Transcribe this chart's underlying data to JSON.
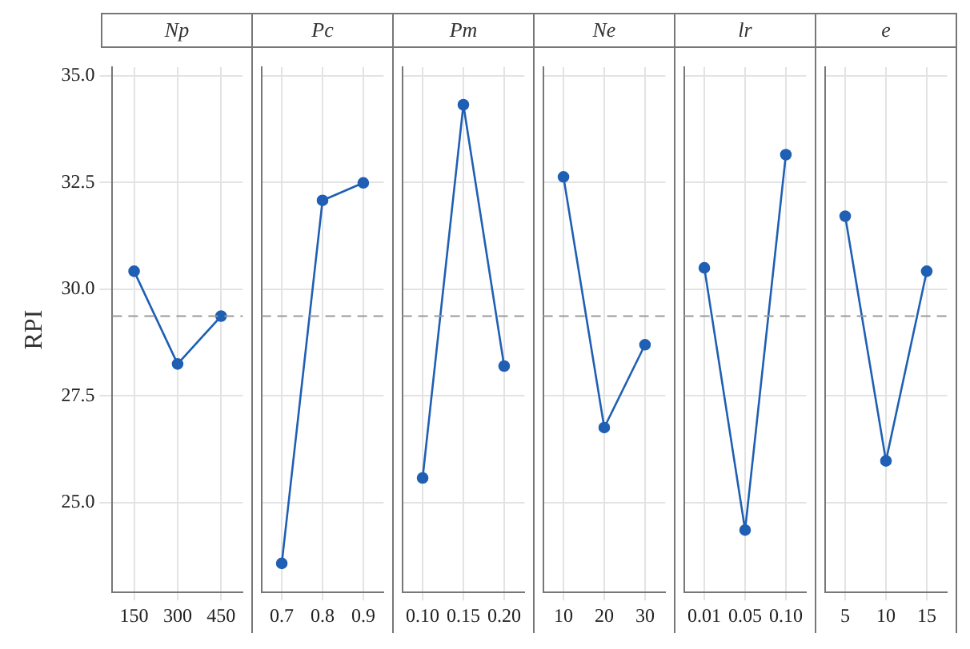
{
  "chart_data": [
    {
      "type": "line",
      "title": "Np",
      "ylabel": "RPI",
      "categories": [
        "150",
        "300",
        "450"
      ],
      "values": [
        30.42,
        28.25,
        29.37
      ],
      "color": "#1f5fb4",
      "ylim": [
        22.9,
        35.2
      ],
      "yticks": [
        {
          "value": 25,
          "label": "25.0"
        },
        {
          "value": 27.5,
          "label": "27.5"
        },
        {
          "value": 30,
          "label": "30.0"
        },
        {
          "value": 32.5,
          "label": "32.5"
        },
        {
          "value": 35,
          "label": "35.0"
        }
      ],
      "ref_lines": [
        {
          "axis": "y",
          "value": 29.37,
          "color": "#999999",
          "line_style": "dashed"
        }
      ],
      "grid": true,
      "marker": "circle"
    },
    {
      "type": "line",
      "title": "Pc",
      "categories": [
        "0.7",
        "0.8",
        "0.9"
      ],
      "values": [
        23.58,
        32.08,
        32.49
      ],
      "color": "#1f5fb4",
      "ylim": [
        22.9,
        35.2
      ],
      "yticks": [
        25,
        27.5,
        30,
        32.5,
        35
      ],
      "ref_lines": [
        {
          "axis": "y",
          "value": 29.37,
          "color": "#999999",
          "line_style": "dashed"
        }
      ],
      "grid": true,
      "marker": "circle",
      "tick_labels": "x"
    },
    {
      "type": "line",
      "title": "Pm",
      "categories": [
        "0.10",
        "0.15",
        "0.20"
      ],
      "values": [
        25.58,
        34.32,
        28.2
      ],
      "color": "#1f5fb4",
      "ylim": [
        22.9,
        35.2
      ],
      "yticks": [
        25,
        27.5,
        30,
        32.5,
        35
      ],
      "ref_lines": [
        {
          "axis": "y",
          "value": 29.37,
          "color": "#999999",
          "line_style": "dashed"
        }
      ],
      "grid": true,
      "marker": "circle",
      "tick_labels": "x"
    },
    {
      "type": "line",
      "title": "Ne",
      "categories": [
        "10",
        "20",
        "30"
      ],
      "values": [
        32.63,
        26.76,
        28.7
      ],
      "color": "#1f5fb4",
      "ylim": [
        22.9,
        35.2
      ],
      "yticks": [
        25,
        27.5,
        30,
        32.5,
        35
      ],
      "ref_lines": [
        {
          "axis": "y",
          "value": 29.37,
          "color": "#999999",
          "line_style": "dashed"
        }
      ],
      "grid": true,
      "marker": "circle",
      "tick_labels": "x"
    },
    {
      "type": "line",
      "title": "lr",
      "categories": [
        "0.01",
        "0.05",
        "0.10"
      ],
      "values": [
        30.5,
        24.36,
        33.15
      ],
      "color": "#1f5fb4",
      "ylim": [
        22.9,
        35.2
      ],
      "yticks": [
        25,
        27.5,
        30,
        32.5,
        35
      ],
      "ref_lines": [
        {
          "axis": "y",
          "value": 29.37,
          "color": "#999999",
          "line_style": "dashed"
        }
      ],
      "grid": true,
      "marker": "circle",
      "tick_labels": "x"
    },
    {
      "type": "line",
      "title": "e",
      "categories": [
        "5",
        "10",
        "15"
      ],
      "values": [
        31.71,
        25.98,
        30.42
      ],
      "color": "#1f5fb4",
      "ylim": [
        22.9,
        35.2
      ],
      "yticks": [
        25,
        27.5,
        30,
        32.5,
        35
      ],
      "ref_lines": [
        {
          "axis": "y",
          "value": 29.37,
          "color": "#999999",
          "line_style": "dashed"
        }
      ],
      "grid": true,
      "marker": "circle",
      "tick_labels": "x"
    }
  ]
}
